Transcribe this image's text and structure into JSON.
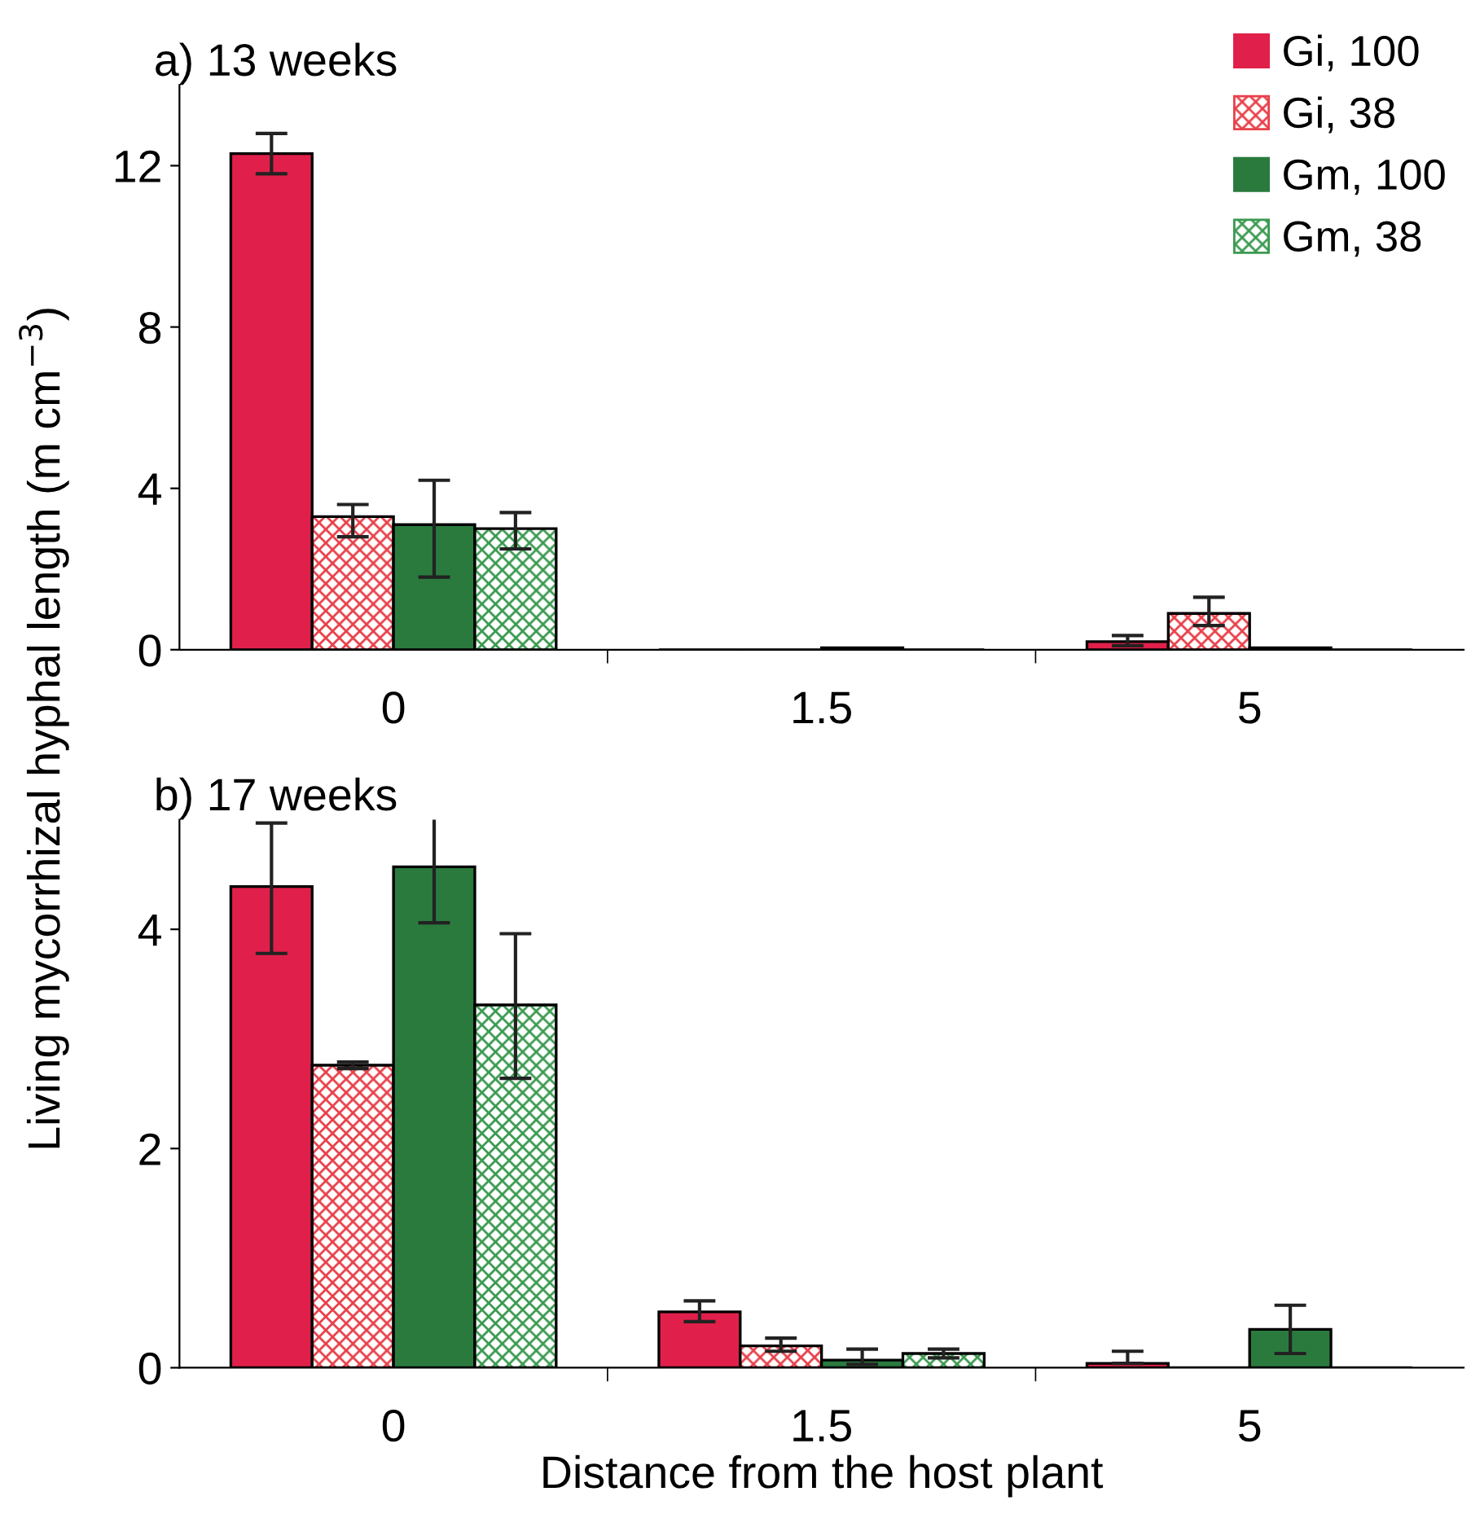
{
  "chart_data": [
    {
      "type": "bar",
      "title": "a) 13 weeks",
      "ylabel": "Living mycorrhizal hyphal length (m cm$^{−3}$)",
      "categories": [
        "0",
        "1.5",
        "5"
      ],
      "ylim": [
        0,
        14
      ],
      "yticks": [
        0,
        4,
        8,
        12
      ],
      "legend": "top right",
      "grid": false,
      "series": [
        {
          "name": "Gi, 100",
          "color": "#e0204a",
          "values": [
            12.3,
            null,
            0.2
          ],
          "errors": [
            [
              11.8,
              12.8
            ],
            null,
            [
              0.1,
              0.35
            ]
          ]
        },
        {
          "name": "Gi, 38",
          "color": "#e8404a",
          "values": [
            3.3,
            null,
            0.9
          ],
          "errors": [
            [
              2.8,
              3.6
            ],
            null,
            [
              0.6,
              1.3
            ]
          ]
        },
        {
          "name": "Gm, 100",
          "color": "#2a7a3e",
          "values": [
            3.1,
            0.05,
            0.05
          ],
          "errors": [
            [
              1.8,
              4.2
            ],
            null,
            null
          ]
        },
        {
          "name": "Gm, 38",
          "color": "#3a9a50",
          "values": [
            3.0,
            null,
            null
          ],
          "errors": [
            [
              2.5,
              3.4
            ],
            null,
            null
          ]
        }
      ]
    },
    {
      "type": "bar",
      "title": "b) 17 weeks",
      "xlabel": "Distance from the host plant",
      "categories": [
        "0",
        "1.5",
        "5"
      ],
      "ylim": [
        0,
        5
      ],
      "yticks": [
        0,
        2,
        4
      ],
      "grid": false,
      "series": [
        {
          "color": "#e0204a",
          "values": [
            4.39,
            0.51,
            0.04
          ],
          "errors": [
            [
              3.78,
              4.97
            ],
            [
              0.42,
              0.61
            ],
            [
              0.04,
              0.15
            ]
          ]
        },
        {
          "color": "#e8404a",
          "values": [
            2.76,
            0.2,
            null
          ],
          "errors": [
            [
              2.73,
              2.79
            ],
            [
              0.15,
              0.27
            ],
            null
          ]
        },
        {
          "color": "#2a7a3e",
          "values": [
            4.57,
            0.07,
            0.35
          ],
          "errors": [
            [
              4.06,
              5.03
            ],
            [
              0.03,
              0.17
            ],
            [
              0.13,
              0.57
            ]
          ]
        },
        {
          "color": "#3a9a50",
          "values": [
            3.31,
            0.13,
            null
          ],
          "errors": [
            [
              2.64,
              3.96
            ],
            [
              0.09,
              0.17
            ],
            null
          ]
        }
      ]
    }
  ]
}
